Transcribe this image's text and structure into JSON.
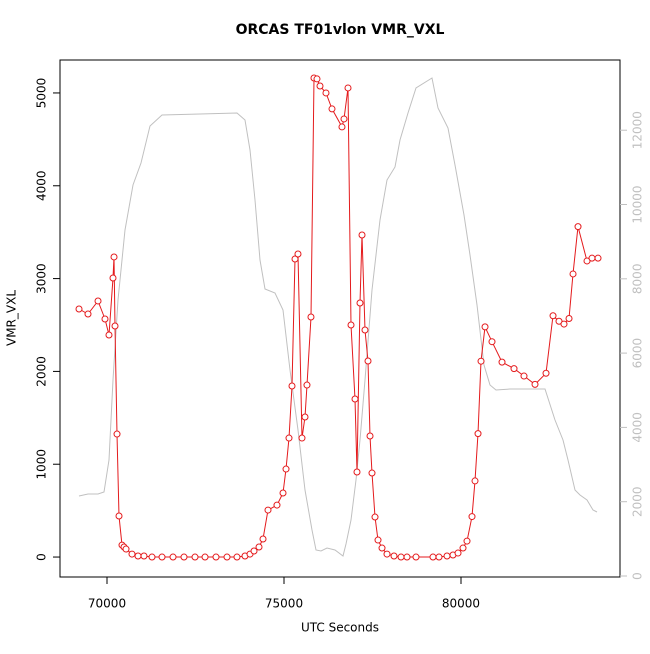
{
  "chart_data": {
    "type": "line",
    "title": "ORCAS TF01vlon VMR_VXL",
    "x_label": "UTC Seconds",
    "y_label": "VMR_VXL",
    "xlim": [
      68672,
      84492
    ],
    "xticks": [
      70000,
      75000,
      80000
    ],
    "ylim": [
      -215,
      5355
    ],
    "yticks": [
      0,
      1000,
      2000,
      3000,
      4000,
      5000
    ],
    "y2lim": [
      -27,
      13890
    ],
    "y2ticks": [
      0,
      2000,
      4000,
      6000,
      8000,
      10000,
      12000
    ],
    "series": [
      {
        "color": "#c0c0c0",
        "axis": "y2",
        "markers": false,
        "x": [
          69209,
          69463,
          69746,
          69915,
          70056,
          70169,
          70311,
          70509,
          70734,
          70961,
          71215,
          71554,
          72627,
          73672,
          73898,
          74040,
          74181,
          74322,
          74464,
          74746,
          74972,
          75169,
          75395,
          75593,
          75791,
          75904,
          76045,
          76215,
          76441,
          76667,
          76752,
          76893,
          77034,
          77147,
          77288,
          77486,
          77712,
          77910,
          78136,
          78277,
          78503,
          78729,
          79181,
          79351,
          79633,
          79831,
          80085,
          80255,
          80452,
          80650,
          80820,
          80989,
          81385,
          82374,
          82656,
          82882,
          83023,
          83221,
          83362,
          83560,
          83730,
          83843
        ],
        "values": [
          2153,
          2207,
          2207,
          2261,
          3122,
          5276,
          7429,
          9314,
          10525,
          11117,
          12113,
          12409,
          12436,
          12463,
          12274,
          11467,
          10121,
          8506,
          7726,
          7618,
          7160,
          5545,
          3930,
          2315,
          1238,
          700,
          673,
          754,
          700,
          538,
          861,
          1507,
          2584,
          3661,
          5276,
          7699,
          9583,
          10660,
          11010,
          11736,
          12463,
          13136,
          13405,
          12598,
          12059,
          11063,
          9718,
          8641,
          7295,
          5680,
          5141,
          5007,
          5034,
          5034,
          4199,
          3661,
          3122,
          2315,
          2180,
          2046,
          1777,
          1723
        ]
      },
      {
        "color": "#e41a1c",
        "axis": "y",
        "markers": true,
        "x": [
          69209,
          69463,
          69746,
          69943,
          70056,
          70169,
          70198,
          70226,
          70283,
          70339,
          70424,
          70480,
          70537,
          70706,
          70876,
          71045,
          71271,
          71554,
          71865,
          72175,
          72486,
          72769,
          73079,
          73390,
          73672,
          73898,
          74040,
          74153,
          74294,
          74407,
          74548,
          74802,
          74972,
          75057,
          75141,
          75226,
          75311,
          75395,
          75508,
          75593,
          75649,
          75762,
          75847,
          75932,
          76017,
          76186,
          76356,
          76638,
          76695,
          76808,
          76893,
          77006,
          77062,
          77147,
          77204,
          77288,
          77373,
          77430,
          77486,
          77571,
          77656,
          77769,
          77910,
          78108,
          78306,
          78475,
          78729,
          79209,
          79379,
          79605,
          79774,
          79916,
          80057,
          80170,
          80311,
          80396,
          80481,
          80566,
          80679,
          80876,
          81159,
          81498,
          81780,
          82091,
          82402,
          82600,
          82769,
          82910,
          83052,
          83165,
          83306,
          83560,
          83701,
          83871
        ],
        "values": [
          2672,
          2618,
          2759,
          2565,
          2392,
          3006,
          3233,
          2489,
          1325,
          442,
          129,
          108,
          86,
          32,
          11,
          11,
          0,
          0,
          0,
          0,
          0,
          0,
          0,
          0,
          0,
          11,
          32,
          65,
          108,
          194,
          506,
          560,
          690,
          948,
          1282,
          1843,
          3211,
          3265,
          1282,
          1509,
          1853,
          2586,
          5161,
          5151,
          5075,
          5000,
          4828,
          4634,
          4720,
          5054,
          2500,
          1703,
          916,
          2737,
          3470,
          2446,
          2112,
          1304,
          905,
          431,
          183,
          97,
          32,
          11,
          0,
          0,
          0,
          0,
          0,
          11,
          22,
          43,
          97,
          172,
          436,
          820,
          1330,
          2110,
          2480,
          2320,
          2100,
          2030,
          1950,
          1860,
          1980,
          2600,
          2540,
          2510,
          2570,
          3050,
          3560,
          3190,
          3220,
          3220
        ]
      }
    ]
  }
}
